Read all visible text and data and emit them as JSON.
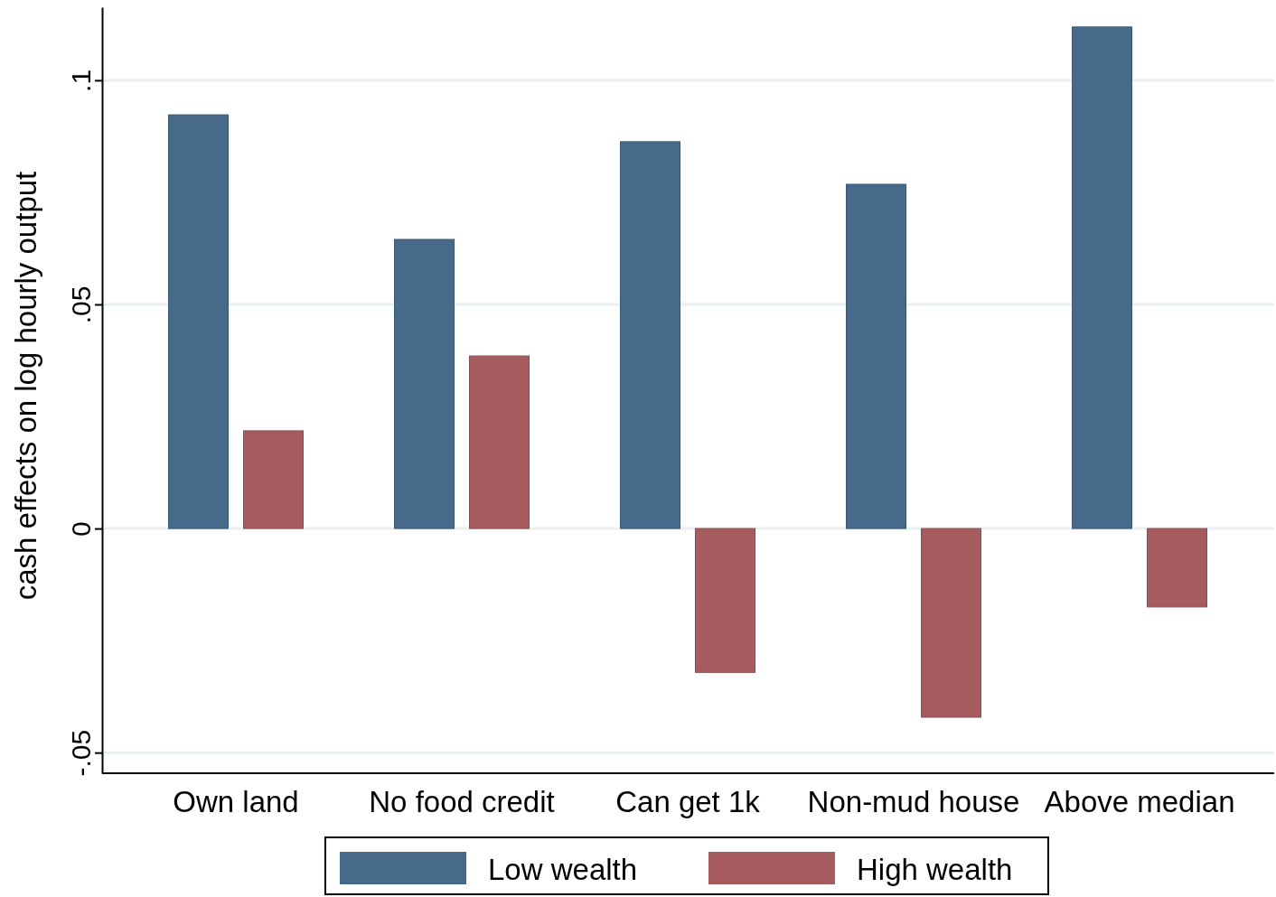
{
  "chart_data": {
    "type": "bar",
    "ylabel": "cash effects on log hourly output",
    "categories": [
      "Own land",
      "No food credit",
      "Can get 1k",
      "Non-mud house",
      "Above median"
    ],
    "series": [
      {
        "name": "Low wealth",
        "color": "#476a8a",
        "values": [
          0.0923,
          0.0645,
          0.0863,
          0.0768,
          0.1119
        ]
      },
      {
        "name": "High wealth",
        "color": "#a65c5e",
        "values": [
          0.0218,
          0.0385,
          -0.0321,
          -0.0421,
          -0.0175
        ]
      }
    ],
    "ylim": [
      -0.0546,
      0.1163
    ],
    "yticks": [
      {
        "value": -0.05,
        "label": "-.05"
      },
      0,
      {
        "value": 0.05,
        "label": ".05"
      },
      {
        "value": 0.1,
        "label": ".1"
      }
    ],
    "grid": "y",
    "legend": "bottom"
  }
}
